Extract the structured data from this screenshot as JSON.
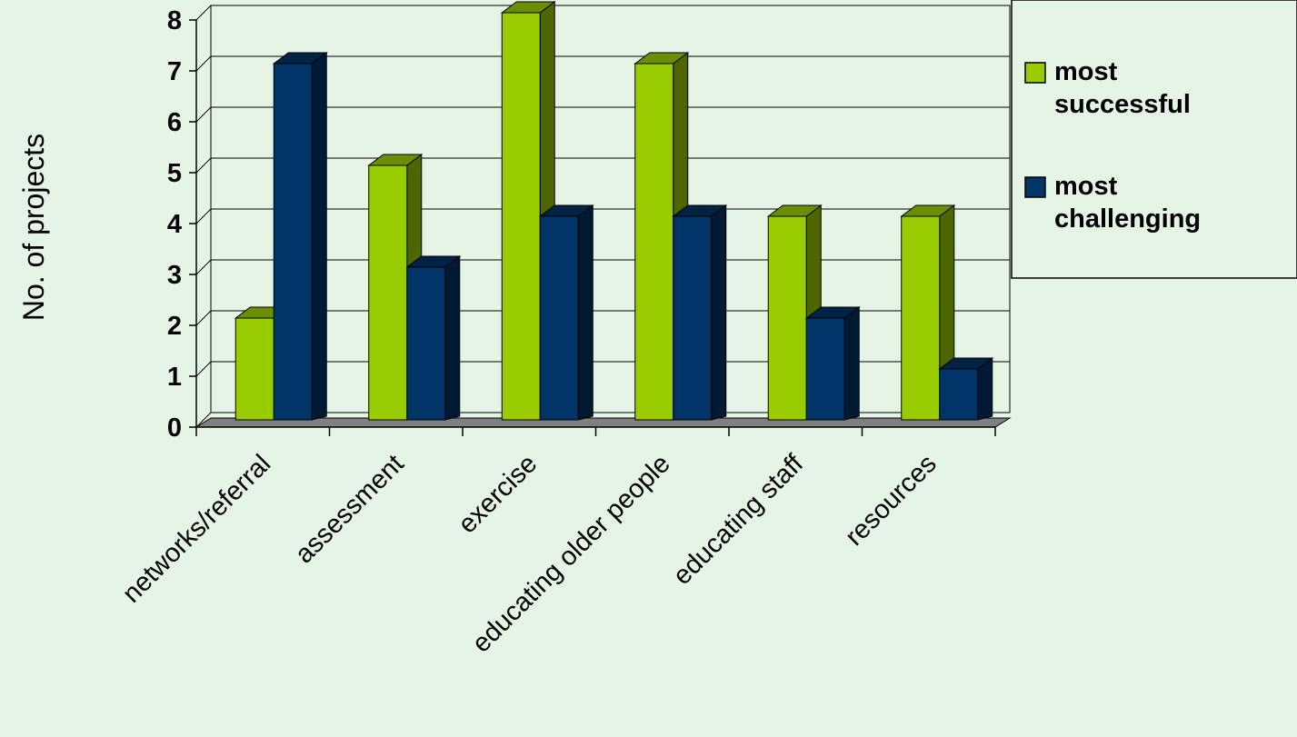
{
  "chart_data": {
    "type": "bar",
    "title": "",
    "xlabel": "",
    "ylabel": "No. of projects",
    "categories": [
      "networks/referral",
      "assessment",
      "exercise",
      "educating older people",
      "educating staff",
      "resources"
    ],
    "series": [
      {
        "name": "most successful",
        "values": [
          2,
          5,
          8,
          7,
          4,
          4
        ],
        "front": "#99cc00",
        "top": "#6b8e00",
        "side": "#4d6600"
      },
      {
        "name": "most challenging",
        "values": [
          7,
          3,
          4,
          4,
          2,
          1
        ],
        "front": "#003366",
        "top": "#002244",
        "side": "#001a33"
      }
    ],
    "ylim": [
      0,
      8
    ],
    "yticks": [
      "0",
      "1",
      "2",
      "3",
      "4",
      "5",
      "6",
      "7",
      "8"
    ],
    "grid": true,
    "legend": {
      "placement": "right",
      "entries": [
        {
          "line1": "most",
          "line2": "successful"
        },
        {
          "line1": "most",
          "line2": "challenging"
        }
      ]
    }
  }
}
